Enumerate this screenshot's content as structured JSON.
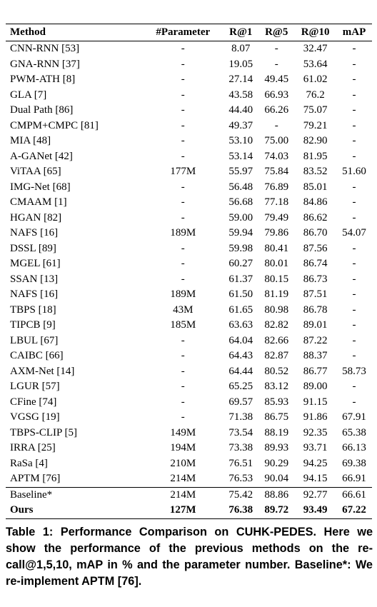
{
  "table": {
    "header": [
      "Method",
      "#Parameter",
      "R@1",
      "R@5",
      "R@10",
      "mAP"
    ],
    "rows": [
      [
        "CNN-RNN [53]",
        "-",
        "8.07",
        "-",
        "32.47",
        "-"
      ],
      [
        "GNA-RNN [37]",
        "-",
        "19.05",
        "-",
        "53.64",
        "-"
      ],
      [
        "PWM-ATH [8]",
        "-",
        "27.14",
        "49.45",
        "61.02",
        "-"
      ],
      [
        "GLA [7]",
        "-",
        "43.58",
        "66.93",
        "76.2",
        "-"
      ],
      [
        "Dual Path [86]",
        "-",
        "44.40",
        "66.26",
        "75.07",
        "-"
      ],
      [
        "CMPM+CMPC [81]",
        "-",
        "49.37",
        "-",
        "79.21",
        "-"
      ],
      [
        "MIA [48]",
        "-",
        "53.10",
        "75.00",
        "82.90",
        "-"
      ],
      [
        "A-GANet [42]",
        "-",
        "53.14",
        "74.03",
        "81.95",
        "-"
      ],
      [
        "ViTAA [65]",
        "177M",
        "55.97",
        "75.84",
        "83.52",
        "51.60"
      ],
      [
        "IMG-Net [68]",
        "-",
        "56.48",
        "76.89",
        "85.01",
        "-"
      ],
      [
        "CMAAM [1]",
        "-",
        "56.68",
        "77.18",
        "84.86",
        "-"
      ],
      [
        "HGAN [82]",
        "-",
        "59.00",
        "79.49",
        "86.62",
        "-"
      ],
      [
        "NAFS [16]",
        "189M",
        "59.94",
        "79.86",
        "86.70",
        "54.07"
      ],
      [
        "DSSL [89]",
        "-",
        "59.98",
        "80.41",
        "87.56",
        "-"
      ],
      [
        "MGEL [61]",
        "-",
        "60.27",
        "80.01",
        "86.74",
        "-"
      ],
      [
        "SSAN [13]",
        "-",
        "61.37",
        "80.15",
        "86.73",
        "-"
      ],
      [
        "NAFS [16]",
        "189M",
        "61.50",
        "81.19",
        "87.51",
        "-"
      ],
      [
        "TBPS [18]",
        "43M",
        "61.65",
        "80.98",
        "86.78",
        "-"
      ],
      [
        "TIPCB [9]",
        "185M",
        "63.63",
        "82.82",
        "89.01",
        "-"
      ],
      [
        "LBUL [67]",
        "-",
        "64.04",
        "82.66",
        "87.22",
        "-"
      ],
      [
        "CAIBC [66]",
        "-",
        "64.43",
        "82.87",
        "88.37",
        "-"
      ],
      [
        "AXM-Net [14]",
        "-",
        "64.44",
        "80.52",
        "86.77",
        "58.73"
      ],
      [
        "LGUR [57]",
        "-",
        "65.25",
        "83.12",
        "89.00",
        "-"
      ],
      [
        "CFine [74]",
        "-",
        "69.57",
        "85.93",
        "91.15",
        "-"
      ],
      [
        "VGSG [19]",
        "-",
        "71.38",
        "86.75",
        "91.86",
        "67.91"
      ],
      [
        "TBPS-CLIP [5]",
        "149M",
        "73.54",
        "88.19",
        "92.35",
        "65.38"
      ],
      [
        "IRRA [25]",
        "194M",
        "73.38",
        "89.93",
        "93.71",
        "66.13"
      ],
      [
        "RaSa [4]",
        "210M",
        "76.51",
        "90.29",
        "94.25",
        "69.38"
      ],
      [
        "APTM [76]",
        "214M",
        "76.53",
        "90.04",
        "94.15",
        "66.91"
      ]
    ],
    "extra_rows": [
      [
        "Baseline*",
        "214M",
        "75.42",
        "88.86",
        "92.77",
        "66.61"
      ],
      [
        "Ours",
        "127M",
        "76.38",
        "89.72",
        "93.49",
        "67.22"
      ]
    ]
  },
  "caption": "Table 1: Performance Comparison on CUHK-PEDES. Here we show the performance of the previous methods on the re-call@1,5,10, mAP in % and the parameter number. Baseline*: We re-implement APTM [76]."
}
